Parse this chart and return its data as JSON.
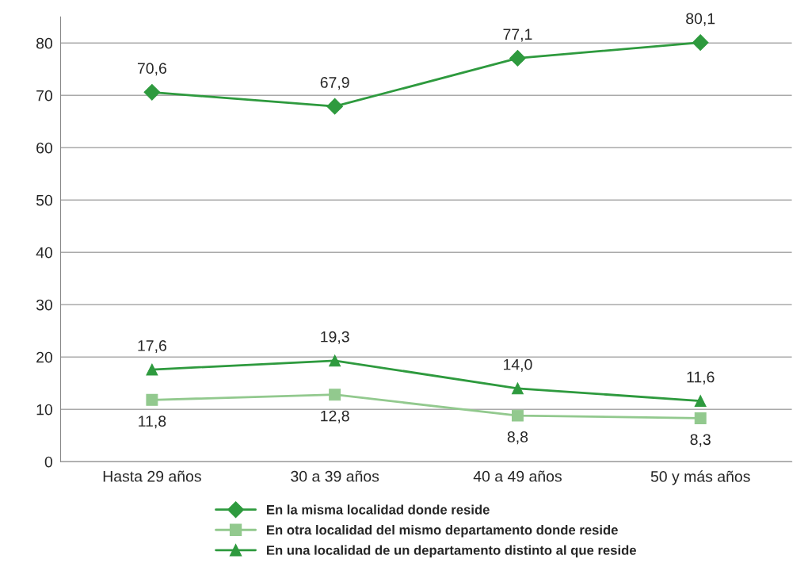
{
  "chart_data": {
    "type": "line",
    "categories": [
      "Hasta 29 años",
      "30 a 39 años",
      "40 a 49 años",
      "50 y más años"
    ],
    "series": [
      {
        "name": "En la misma localidad donde reside",
        "color": "#2e9a3e",
        "marker": "diamond",
        "values": [
          70.6,
          67.9,
          77.1,
          80.1
        ],
        "value_labels": [
          "70,6",
          "67,9",
          "77,1",
          "80,1"
        ]
      },
      {
        "name": "En otra localidad del mismo departamento donde reside",
        "color": "#92c98e",
        "marker": "square",
        "values": [
          11.8,
          12.8,
          8.8,
          8.3
        ],
        "value_labels": [
          "11,8",
          "12,8",
          "8,8",
          "8,3"
        ]
      },
      {
        "name": "En una localidad de un departamento distinto al que reside",
        "color": "#2e9a3e",
        "marker": "triangle",
        "values": [
          17.6,
          19.3,
          14.0,
          11.6
        ],
        "value_labels": [
          "17,6",
          "19,3",
          "14,0",
          "11,6"
        ]
      }
    ],
    "ylim": [
      0,
      85
    ],
    "yticks": [
      0,
      10,
      20,
      30,
      40,
      50,
      60,
      70,
      80
    ],
    "grid": "y",
    "legend": "bottom"
  }
}
